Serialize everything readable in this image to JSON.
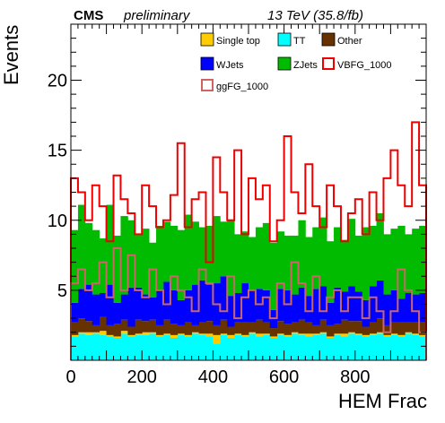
{
  "header": {
    "experiment": "CMS",
    "status": "preliminary",
    "energy": "13 TeV (35.8/fb)"
  },
  "chart_data": {
    "type": "histogram",
    "xlabel": "HEM Frac",
    "ylabel": "Events",
    "xlim": [
      0,
      1000
    ],
    "ylim": [
      0,
      24
    ],
    "x_ticks": [
      "0",
      "200",
      "400",
      "600",
      "800"
    ],
    "y_ticks": [
      "5",
      "10",
      "15",
      "20"
    ],
    "bin_width": 20,
    "stack_order": [
      "TT",
      "Single top",
      "Other",
      "WJets",
      "ZJets"
    ],
    "series": [
      {
        "name": "Single top",
        "kind": "stacked",
        "color": "#ffcc00",
        "values": [
          0.1,
          0.1,
          0.2,
          0.1,
          0.3,
          0.1,
          0.1,
          0.2,
          0.1,
          0.1,
          0.2,
          0.1,
          0.1,
          0.1,
          0.2,
          0.1,
          0.1,
          0.1,
          0.1,
          0.2,
          0.6,
          0.1,
          0.2,
          0.1,
          0.1,
          0.1,
          0.2,
          0.1,
          0.1,
          0.1,
          0.1,
          0.1,
          0.1,
          0.2,
          0.1,
          0.1,
          0.1,
          0.1,
          0.2,
          0.1,
          0.1,
          0.1,
          0.1,
          0.1,
          0.1,
          0.1,
          0.1,
          0.1,
          0.1,
          0.1
        ]
      },
      {
        "name": "TT",
        "kind": "stacked",
        "color": "#00ffff",
        "values": [
          1.7,
          1.9,
          1.8,
          1.9,
          1.8,
          1.7,
          1.6,
          1.9,
          1.7,
          1.8,
          1.8,
          1.9,
          1.7,
          1.8,
          1.6,
          1.8,
          1.7,
          1.9,
          1.8,
          1.7,
          1.2,
          1.8,
          1.6,
          1.8,
          1.7,
          1.9,
          1.7,
          1.8,
          1.6,
          1.8,
          1.7,
          1.9,
          1.8,
          1.7,
          1.8,
          1.9,
          1.6,
          1.8,
          1.7,
          1.9,
          1.8,
          1.7,
          1.8,
          1.9,
          1.7,
          1.8,
          1.7,
          1.9,
          1.8,
          1.7
        ]
      },
      {
        "name": "Other",
        "kind": "stacked",
        "color": "#663300",
        "values": [
          0.9,
          1.0,
          0.8,
          0.5,
          1.0,
          0.7,
          0.9,
          0.8,
          0.6,
          1.0,
          0.8,
          0.9,
          0.7,
          1.0,
          0.8,
          0.6,
          0.9,
          0.5,
          0.8,
          0.9,
          0.7,
          1.0,
          0.6,
          0.8,
          0.9,
          0.7,
          1.0,
          0.8,
          0.6,
          0.9,
          0.8,
          0.7,
          1.0,
          0.8,
          0.6,
          0.9,
          0.8,
          0.7,
          1.0,
          0.8,
          0.9,
          0.6,
          0.8,
          1.0,
          0.7,
          0.8,
          0.9,
          0.7,
          0.8,
          0.9
        ]
      },
      {
        "name": "WJets",
        "kind": "stacked",
        "color": "#0000ff",
        "values": [
          1.4,
          2.1,
          2.6,
          2.2,
          1.7,
          2.9,
          1.5,
          1.8,
          2.8,
          2.3,
          1.9,
          1.6,
          2.5,
          2.7,
          2.4,
          1.8,
          2.3,
          2.9,
          3.0,
          2.6,
          3.0,
          3.1,
          2.2,
          2.1,
          2.8,
          2.3,
          2.2,
          2.3,
          1.3,
          2.3,
          2.4,
          2.0,
          2.3,
          1.9,
          2.6,
          2.4,
          1.6,
          2.6,
          2.0,
          2.5,
          2.1,
          1.9,
          2.6,
          2.7,
          2.2,
          2.3,
          1.7,
          2.1,
          2.0,
          2.1
        ]
      },
      {
        "name": "ZJets",
        "kind": "stacked",
        "color": "#00bb00",
        "values": [
          5.2,
          6.0,
          4.4,
          4.6,
          3.9,
          5.7,
          4.8,
          5.6,
          4.8,
          3.8,
          4.7,
          3.9,
          4.6,
          4.3,
          4.6,
          5.0,
          5.4,
          4.5,
          3.8,
          4.2,
          4.8,
          3.9,
          5.4,
          4.2,
          3.7,
          3.8,
          4.4,
          4.8,
          4.8,
          4.1,
          3.9,
          4.2,
          4.8,
          4.2,
          4.4,
          4.9,
          4.4,
          4.3,
          3.7,
          4.8,
          4.0,
          5.2,
          4.3,
          4.8,
          4.3,
          4.4,
          5.2,
          4.2,
          4.7,
          4.8
        ]
      },
      {
        "name": "VBFG_1000",
        "kind": "line",
        "color": "#ee0000",
        "values": [
          13.0,
          12.0,
          10.0,
          12.5,
          11.0,
          8.5,
          13.2,
          11.5,
          10.5,
          9.0,
          12.5,
          11.0,
          9.5,
          10.0,
          11.8,
          15.5,
          9.5,
          11.5,
          12.0,
          7.0,
          14.5,
          12.0,
          10.0,
          15.0,
          9.0,
          13.0,
          11.5,
          12.5,
          8.5,
          10.0,
          16.0,
          12.0,
          10.5,
          14.0,
          11.0,
          9.5,
          12.5,
          11.0,
          8.5,
          10.5,
          11.5,
          9.0,
          12.0,
          10.0,
          13.0,
          15.0,
          12.5,
          11.0,
          17.0,
          12.5
        ]
      },
      {
        "name": "ggFG_1000",
        "kind": "line",
        "color": "#cc6666",
        "values": [
          5.5,
          6.5,
          5.0,
          5.5,
          7.0,
          4.5,
          8.0,
          5.0,
          7.5,
          5.0,
          4.5,
          6.5,
          5.0,
          4.0,
          6.0,
          5.0,
          4.5,
          3.5,
          6.5,
          5.5,
          4.0,
          3.5,
          6.0,
          3.0,
          4.5,
          5.0,
          4.0,
          4.5,
          3.0,
          5.5,
          4.0,
          7.0,
          5.5,
          3.5,
          6.0,
          3.5,
          4.5,
          5.0,
          3.5,
          4.5,
          4.5,
          3.0,
          4.5,
          3.5,
          2.0,
          3.5,
          6.5,
          5.0,
          3.5,
          2.0
        ]
      }
    ],
    "legend": {
      "position": "top-right",
      "columns": 3,
      "entries": [
        {
          "label": "Single top",
          "style": "fill",
          "color": "#ffcc00"
        },
        {
          "label": "TT",
          "style": "fill",
          "color": "#00ffff"
        },
        {
          "label": "Other",
          "style": "fill",
          "color": "#663300"
        },
        {
          "label": "WJets",
          "style": "fill",
          "color": "#0000ff"
        },
        {
          "label": "ZJets",
          "style": "fill",
          "color": "#00bb00"
        },
        {
          "label": "VBFG_1000",
          "style": "line",
          "color": "#ee0000"
        },
        {
          "label": "ggFG_1000",
          "style": "line",
          "color": "#cc6666"
        }
      ]
    }
  }
}
